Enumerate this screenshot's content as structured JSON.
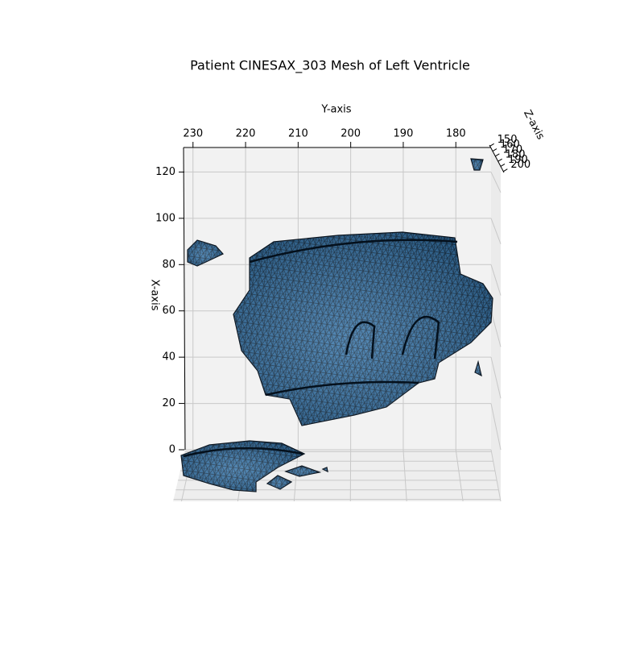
{
  "chart_data": {
    "type": "mesh3d",
    "title": "Patient CINESAX_303 Mesh of Left Ventricle",
    "xlabel": "X-axis",
    "ylabel": "Y-axis",
    "zlabel": "Z-axis",
    "xlim": [
      0,
      130.6
    ],
    "xticks": [
      0,
      20,
      40,
      60,
      80,
      100,
      120
    ],
    "ylim": [
      231.8,
      173.3
    ],
    "yticks": [
      230,
      220,
      210,
      200,
      190,
      180
    ],
    "zlim": [
      148,
      202
    ],
    "zticks": [
      150,
      160,
      170,
      180,
      190,
      200
    ],
    "color": "#2f6fa5",
    "grid": true
  }
}
